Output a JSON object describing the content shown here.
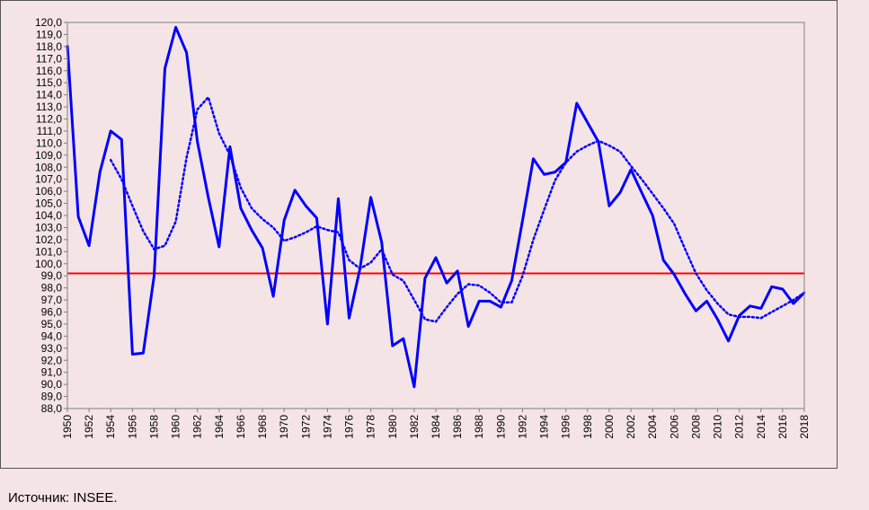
{
  "source": "Источник: INSEE.",
  "chart_data": {
    "type": "line",
    "title": "",
    "xlabel": "",
    "ylabel": "",
    "ylim": [
      88.0,
      120.0
    ],
    "xlim": [
      1950,
      2018
    ],
    "y_tick_step": 1,
    "y_tick_decimals": 1,
    "x_tick_labels": [
      "1950",
      "1952",
      "1954",
      "1956",
      "1958",
      "1960",
      "1962",
      "1964",
      "1966",
      "1968",
      "1970",
      "1972",
      "1974",
      "1976",
      "1978",
      "1980",
      "1982",
      "1984",
      "1986",
      "1988",
      "1990",
      "1992",
      "1994",
      "1996",
      "1998",
      "2000",
      "2002",
      "2004",
      "2006",
      "2008",
      "2010",
      "2012",
      "2014",
      "2016",
      "2018"
    ],
    "grid": false,
    "legend": "none",
    "reference_line": {
      "y": 99.2,
      "color": "#ff0000"
    },
    "x": [
      1950,
      1951,
      1952,
      1953,
      1954,
      1955,
      1956,
      1957,
      1958,
      1959,
      1960,
      1961,
      1962,
      1963,
      1964,
      1965,
      1966,
      1967,
      1968,
      1969,
      1970,
      1971,
      1972,
      1973,
      1974,
      1975,
      1976,
      1977,
      1978,
      1979,
      1980,
      1981,
      1982,
      1983,
      1984,
      1985,
      1986,
      1987,
      1988,
      1989,
      1990,
      1991,
      1992,
      1993,
      1994,
      1995,
      1996,
      1997,
      1998,
      1999,
      2000,
      2001,
      2002,
      2003,
      2004,
      2005,
      2006,
      2007,
      2008,
      2009,
      2010,
      2011,
      2012,
      2013,
      2014,
      2015,
      2016,
      2017,
      2018
    ],
    "series": [
      {
        "style": "solid",
        "color": "#0000ff",
        "values": [
          118.1,
          103.9,
          101.5,
          107.6,
          111.0,
          110.3,
          92.5,
          92.6,
          99.0,
          116.2,
          119.6,
          117.5,
          110.1,
          105.5,
          101.4,
          109.7,
          104.6,
          102.8,
          101.3,
          97.3,
          103.6,
          106.1,
          104.8,
          103.8,
          95.0,
          105.4,
          95.5,
          99.6,
          105.5,
          101.8,
          93.2,
          93.8,
          89.8,
          98.8,
          100.5,
          98.4,
          99.4,
          94.8,
          96.9,
          96.9,
          96.4,
          98.6,
          103.6,
          108.7,
          107.4,
          107.6,
          108.4,
          113.3,
          111.7,
          110.1,
          104.8,
          105.9,
          107.8,
          105.9,
          104.0,
          100.3,
          99.1,
          97.5,
          96.1,
          96.9,
          95.4,
          93.6,
          95.7,
          96.5,
          96.3,
          98.1,
          97.9,
          96.7,
          97.6
        ]
      },
      {
        "style": "dotted",
        "color": "#0000ff",
        "values": [
          null,
          null,
          null,
          null,
          108.6,
          107.0,
          104.8,
          102.7,
          101.2,
          101.5,
          103.5,
          108.8,
          112.8,
          113.8,
          110.8,
          109.0,
          106.3,
          104.6,
          103.7,
          103.0,
          101.9,
          102.2,
          102.6,
          103.1,
          102.8,
          102.6,
          100.3,
          99.6,
          100.1,
          101.2,
          99.1,
          98.6,
          97.0,
          95.4,
          95.2,
          96.4,
          97.5,
          98.3,
          98.2,
          97.6,
          96.8,
          96.8,
          99.0,
          102.0,
          104.5,
          106.9,
          108.4,
          109.3,
          109.8,
          110.2,
          109.8,
          109.3,
          108.1,
          107.0,
          105.8,
          104.6,
          103.3,
          101.2,
          99.2,
          97.8,
          96.7,
          95.8,
          95.6,
          95.6,
          95.5,
          96.0,
          96.5,
          97.0,
          97.6
        ]
      }
    ]
  }
}
